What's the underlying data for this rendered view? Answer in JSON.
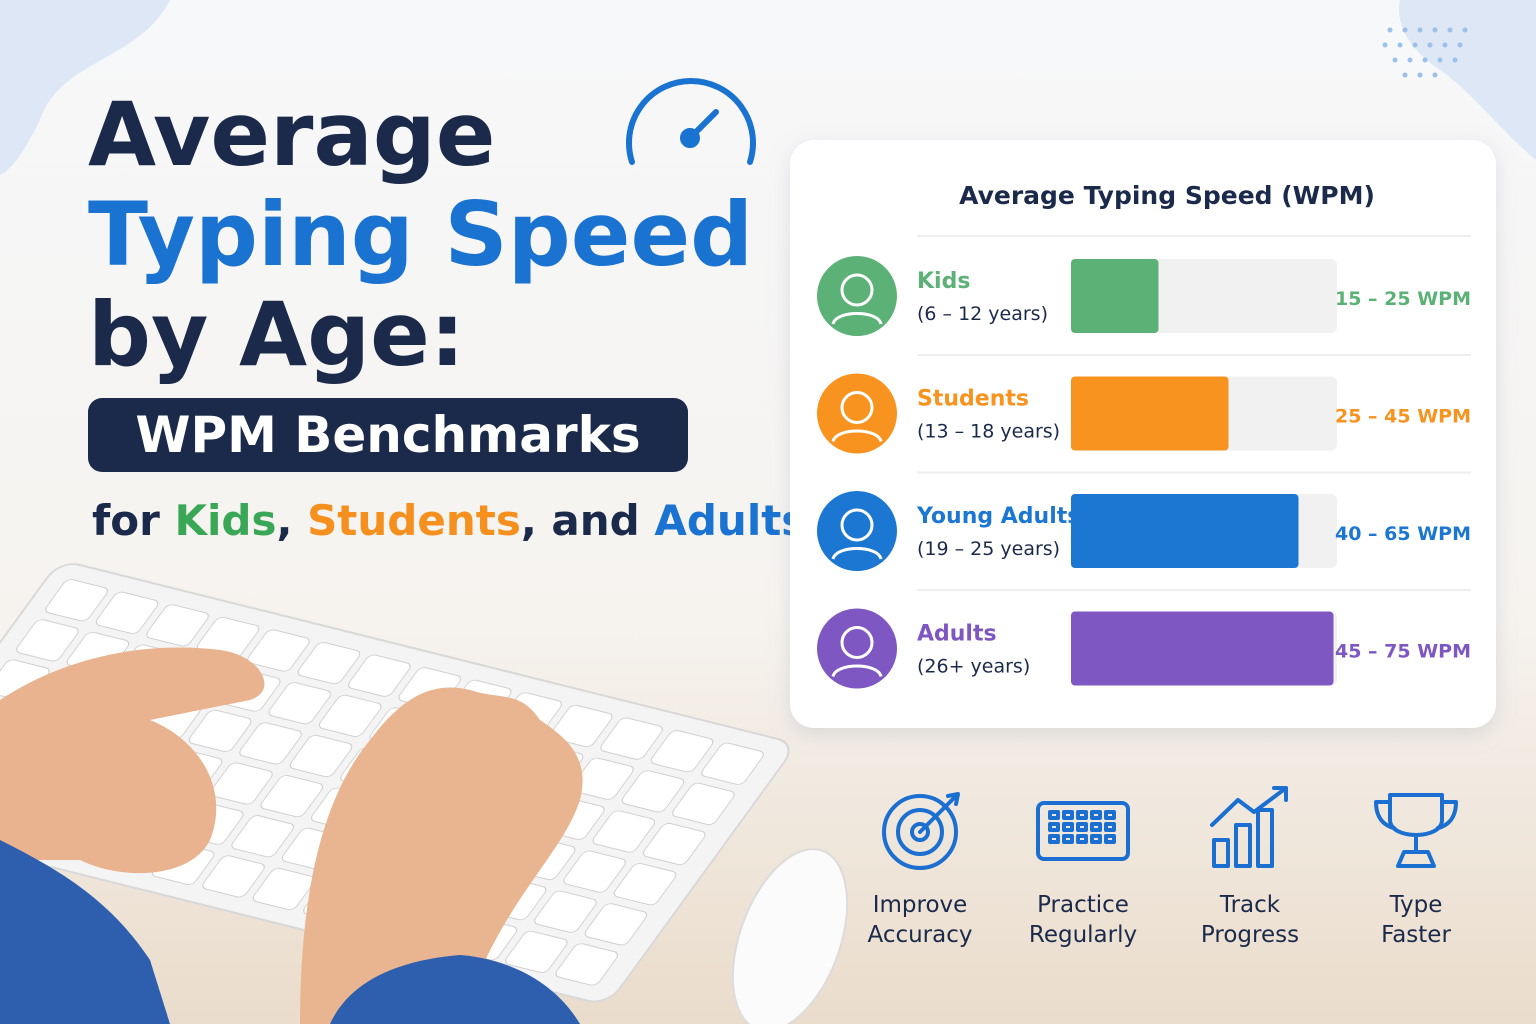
{
  "header": {
    "line1": "Average",
    "line2": "Typing Speed",
    "line3": "by Age:",
    "badge": "WPM Benchmarks",
    "subtitle": [
      {
        "text": "for ",
        "color": "#1b2a4a"
      },
      {
        "text": "Kids",
        "color": "#3aa757"
      },
      {
        "text": ", ",
        "color": "#1b2a4a"
      },
      {
        "text": "Students",
        "color": "#f5901e"
      },
      {
        "text": ", and ",
        "color": "#1b2a4a"
      },
      {
        "text": "Adults",
        "color": "#1a73d0"
      }
    ]
  },
  "chart_data": {
    "type": "bar",
    "orientation": "horizontal",
    "title": "Average Typing Speed (WPM)",
    "categories": [
      "Kids",
      "Students",
      "Young Adults",
      "Adults"
    ],
    "age_ranges": [
      "(6 – 12 years)",
      "(13 – 18 years)",
      "(19 – 25 years)",
      "(26+ years)"
    ],
    "values": [
      25,
      45,
      65,
      75
    ],
    "value_labels": [
      "15 – 25 WPM",
      "25 – 45 WPM",
      "40 – 65 WPM",
      "45 – 75 WPM"
    ],
    "colors": [
      "#5cb176",
      "#f7931e",
      "#1c77d2",
      "#7e57c2"
    ],
    "xlim": [
      0,
      76
    ]
  },
  "tips": [
    [
      "Improve",
      "Accuracy"
    ],
    [
      "Practice",
      "Regularly"
    ],
    [
      "Track",
      "Progress"
    ],
    [
      "Type",
      "Faster"
    ]
  ]
}
